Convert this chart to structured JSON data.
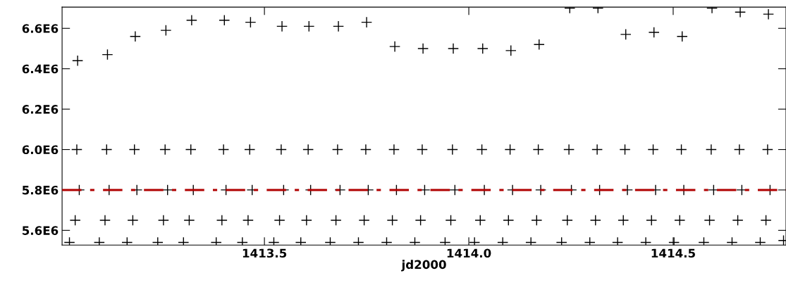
{
  "chart_data": {
    "type": "scatter",
    "xlabel": "jd2000",
    "marker": "cross",
    "grid": false,
    "legend": false,
    "xlim": [
      1413.005,
      1414.776
    ],
    "ylim": [
      5527000,
      6705000
    ],
    "xticks": [
      {
        "value": 1413.5,
        "label": "1413.5"
      },
      {
        "value": 1414.0,
        "label": "1414.0"
      },
      {
        "value": 1414.5,
        "label": "1414.5"
      }
    ],
    "yticks": [
      {
        "value": 5600000,
        "label": "5.6E6"
      },
      {
        "value": 5800000,
        "label": "5.8E6"
      },
      {
        "value": 6000000,
        "label": "6.0E6"
      },
      {
        "value": 6200000,
        "label": "6.2E6"
      },
      {
        "value": 6400000,
        "label": "6.4E6"
      },
      {
        "value": 6600000,
        "label": "6.6E6"
      }
    ],
    "ref_lines": [
      {
        "axis": "y",
        "value": 5800000,
        "label": null,
        "color": "#b00000",
        "line_style": "dashed"
      }
    ],
    "x": [
      1413.023,
      1413.037,
      1413.041,
      1413.043,
      1413.047,
      1413.096,
      1413.11,
      1413.114,
      1413.116,
      1413.12,
      1413.164,
      1413.178,
      1413.182,
      1413.184,
      1413.188,
      1413.239,
      1413.253,
      1413.257,
      1413.259,
      1413.263,
      1413.302,
      1413.316,
      1413.32,
      1413.322,
      1413.326,
      1413.382,
      1413.396,
      1413.4,
      1413.402,
      1413.406,
      1413.446,
      1413.46,
      1413.464,
      1413.466,
      1413.47,
      1413.523,
      1413.537,
      1413.541,
      1413.543,
      1413.547,
      1413.589,
      1413.603,
      1413.607,
      1413.609,
      1413.613,
      1413.661,
      1413.675,
      1413.679,
      1413.681,
      1413.685,
      1413.73,
      1413.744,
      1413.748,
      1413.75,
      1413.754,
      1413.799,
      1413.813,
      1413.817,
      1413.819,
      1413.823,
      1413.868,
      1413.882,
      1413.886,
      1413.888,
      1413.892,
      1413.942,
      1413.956,
      1413.96,
      1413.962,
      1413.966,
      1414.014,
      1414.028,
      1414.032,
      1414.034,
      1414.038,
      1414.083,
      1414.097,
      1414.101,
      1414.103,
      1414.107,
      1414.152,
      1414.166,
      1414.17,
      1414.172,
      1414.176,
      1414.227,
      1414.241,
      1414.245,
      1414.247,
      1414.251,
      1414.296,
      1414.31,
      1414.314,
      1414.316,
      1414.32,
      1414.364,
      1414.378,
      1414.382,
      1414.384,
      1414.388,
      1414.433,
      1414.447,
      1414.451,
      1414.453,
      1414.457,
      1414.502,
      1414.516,
      1414.52,
      1414.522,
      1414.526,
      1414.575,
      1414.589,
      1414.593,
      1414.595,
      1414.599,
      1414.644,
      1414.658,
      1414.662,
      1414.664,
      1414.668,
      1414.713,
      1414.727,
      1414.731,
      1414.733,
      1414.737,
      1414.77
    ],
    "series": [
      {
        "color": "#000000",
        "values": [
          5540000,
          5650000,
          6000000,
          6440000,
          5800000,
          5540000,
          5650000,
          6000000,
          6470000,
          5800000,
          5540000,
          5650000,
          6000000,
          6560000,
          5800000,
          5540000,
          5650000,
          6000000,
          6590000,
          5800000,
          5540000,
          5650000,
          6000000,
          6640000,
          5800000,
          5540000,
          5650000,
          6000000,
          6640000,
          5800000,
          5540000,
          5650000,
          6000000,
          6630000,
          5800000,
          5540000,
          5650000,
          6000000,
          6610000,
          5800000,
          5540000,
          5650000,
          6000000,
          6610000,
          5800000,
          5540000,
          5650000,
          6000000,
          6610000,
          5800000,
          5540000,
          5650000,
          6000000,
          6630000,
          5800000,
          5540000,
          5650000,
          6000000,
          6510000,
          5800000,
          5540000,
          5650000,
          6000000,
          6500000,
          5800000,
          5540000,
          5650000,
          6000000,
          6500000,
          5800000,
          5540000,
          5650000,
          6000000,
          6500000,
          5800000,
          5540000,
          5650000,
          6000000,
          6490000,
          5800000,
          5540000,
          5650000,
          6000000,
          6520000,
          5800000,
          5540000,
          5650000,
          6000000,
          6700000,
          5800000,
          5540000,
          5650000,
          6000000,
          6700000,
          5800000,
          5540000,
          5650000,
          6000000,
          6570000,
          5800000,
          5540000,
          5650000,
          6000000,
          6580000,
          5800000,
          5540000,
          5650000,
          6000000,
          6560000,
          5800000,
          5540000,
          5650000,
          6000000,
          6700000,
          5800000,
          5540000,
          5650000,
          6000000,
          6680000,
          5800000,
          5540000,
          5650000,
          6000000,
          6670000,
          5800000,
          5550000
        ]
      }
    ]
  }
}
